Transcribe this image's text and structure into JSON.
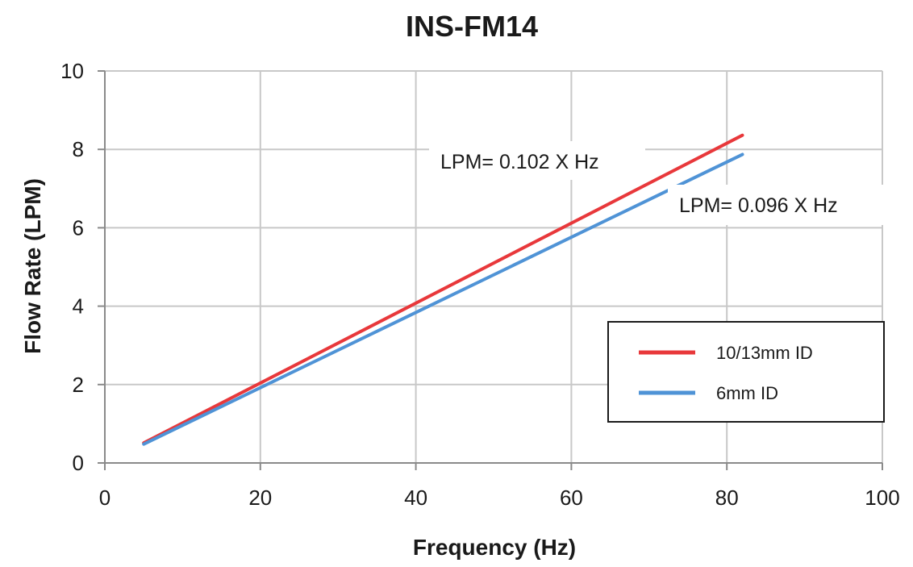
{
  "chart_data": {
    "type": "line",
    "title": "INS-FM14",
    "xlabel": "Frequency (Hz)",
    "ylabel": "Flow Rate (LPM)",
    "xlim": [
      0,
      100
    ],
    "ylim": [
      0,
      10
    ],
    "x_ticks": [
      "0",
      "20",
      "40",
      "60",
      "80",
      "100"
    ],
    "y_ticks": [
      "0",
      "2",
      "4",
      "6",
      "8",
      "10"
    ],
    "grid": true,
    "legend_position": "right",
    "series": [
      {
        "name": "10/13mm ID",
        "color": "#e8383b",
        "x": [
          5,
          82
        ],
        "y": [
          0.51,
          8.36
        ]
      },
      {
        "name": "6mm ID",
        "color": "#4f93d6",
        "x": [
          5,
          82
        ],
        "y": [
          0.48,
          7.87
        ]
      }
    ],
    "annotations": [
      {
        "text": "LPM= 0.102 X Hz",
        "series": 0
      },
      {
        "text": "LPM= 0.096 X Hz",
        "series": 1
      }
    ]
  }
}
